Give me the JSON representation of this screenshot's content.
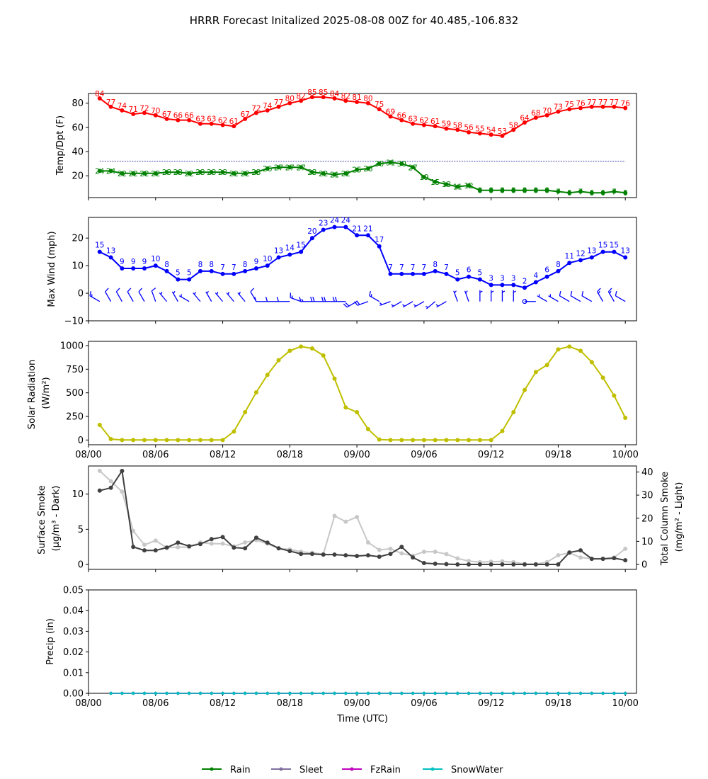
{
  "title": "HRRR Forecast Initalized 2025-08-08 00Z for 40.485,-106.832",
  "colors": {
    "temp": "#ff0000",
    "dewpoint": "#008000",
    "wind": "#0000ff",
    "solar": "#bfbf00",
    "smoke_surface": "#404040",
    "smoke_column": "#c8c8c8",
    "rain": "#008000",
    "sleet": "#8070a0",
    "fzrain": "#c000c0",
    "snowwater": "#00c0c0"
  },
  "chart_data": [
    {
      "type": "line",
      "panel": "temperature",
      "ylabel": "Temp/Dpt (F)",
      "x_hours": [
        1,
        2,
        3,
        4,
        5,
        6,
        7,
        8,
        9,
        10,
        11,
        12,
        13,
        14,
        15,
        16,
        17,
        18,
        19,
        20,
        21,
        22,
        23,
        24,
        25,
        26,
        27,
        28,
        29,
        30,
        31,
        32,
        33,
        34,
        35,
        36,
        37,
        38,
        39,
        40,
        41,
        42,
        43,
        44,
        45,
        46,
        47,
        48
      ],
      "xlim": [
        0,
        49
      ],
      "ylim": [
        2,
        88
      ],
      "yticks": [
        "20",
        "40",
        "60",
        "80"
      ],
      "ytick_values": [
        20,
        40,
        60,
        80
      ],
      "freezing_line": 32,
      "series": [
        {
          "key": "temp",
          "values": [
            84,
            77,
            74,
            71,
            72,
            70,
            67,
            66,
            66,
            63,
            63,
            62,
            61,
            67,
            72,
            74,
            77,
            80,
            82,
            85,
            85,
            84,
            82,
            81,
            80,
            75,
            69,
            66,
            63,
            62,
            61,
            59,
            58,
            56,
            55,
            54,
            53,
            58,
            64,
            68,
            70,
            73,
            75,
            76,
            77,
            77,
            77,
            76
          ]
        },
        {
          "key": "dewpoint",
          "values": [
            24,
            24,
            22,
            22,
            22,
            22,
            23,
            23,
            22,
            23,
            23,
            23,
            22,
            22,
            23,
            26,
            27,
            27,
            27,
            23,
            22,
            21,
            22,
            25,
            26,
            30,
            31,
            30,
            27,
            19,
            15,
            13,
            11,
            12,
            8,
            8,
            8,
            8,
            8,
            8,
            8,
            7,
            6,
            7,
            6,
            6,
            7,
            6
          ]
        }
      ]
    },
    {
      "type": "line",
      "panel": "wind",
      "ylabel": "Max Wind (mph)",
      "xlim": [
        0,
        49
      ],
      "ylim": [
        -10,
        27.5
      ],
      "yticks": [
        "−10",
        "0",
        "10",
        "20"
      ],
      "ytick_values": [
        -10,
        0,
        10,
        20
      ],
      "series": [
        {
          "key": "wind",
          "values": [
            15,
            13,
            9,
            9,
            9,
            10,
            8,
            5,
            5,
            8,
            8,
            7,
            7,
            8,
            9,
            10,
            13,
            14,
            15,
            20,
            23,
            24,
            24,
            21,
            21,
            17,
            7,
            7,
            7,
            7,
            8,
            7,
            5,
            6,
            5,
            3,
            3,
            3,
            2,
            4,
            6,
            8,
            11,
            12,
            13,
            15,
            15,
            13
          ]
        }
      ],
      "barb_dirs": [
        300,
        330,
        330,
        330,
        330,
        340,
        320,
        330,
        300,
        320,
        330,
        320,
        320,
        320,
        330,
        270,
        270,
        270,
        290,
        270,
        270,
        270,
        270,
        240,
        250,
        300,
        250,
        240,
        240,
        240,
        230,
        240,
        340,
        340,
        0,
        0,
        0,
        0,
        0,
        270,
        300,
        300,
        300,
        300,
        300,
        330,
        330,
        300
      ]
    },
    {
      "type": "line",
      "panel": "solar",
      "ylabel_line1": "Solar Radiation",
      "ylabel_line2": "(W/m²)",
      "xlim": [
        0,
        49
      ],
      "ylim": [
        -50,
        1045
      ],
      "yticks": [
        "0",
        "250",
        "500",
        "750",
        "1000"
      ],
      "ytick_values": [
        0,
        250,
        500,
        750,
        1000
      ],
      "series": [
        {
          "key": "solar",
          "values": [
            160,
            10,
            0,
            0,
            0,
            0,
            0,
            0,
            0,
            0,
            0,
            0,
            90,
            295,
            505,
            690,
            845,
            945,
            990,
            970,
            895,
            650,
            345,
            295,
            115,
            5,
            0,
            0,
            0,
            0,
            0,
            0,
            0,
            0,
            0,
            0,
            95,
            295,
            530,
            720,
            795,
            960,
            990,
            945,
            825,
            660,
            470,
            235
          ]
        }
      ]
    },
    {
      "type": "line",
      "panel": "smoke",
      "ylabel_line1": "Surface Smoke",
      "ylabel_line2": "(μg/m³ - Dark)",
      "y2label_line1": "Total Column Smoke",
      "y2label_line2": "(mg/m² - Light)",
      "xlim": [
        0,
        49
      ],
      "ylim": [
        -0.7,
        14
      ],
      "yticks": [
        "0",
        "5",
        "10"
      ],
      "ytick_values": [
        0,
        5,
        10
      ],
      "y2lim": [
        -2.13,
        42.6
      ],
      "y2ticks": [
        "0",
        "10",
        "20",
        "30",
        "40"
      ],
      "y2tick_values": [
        0,
        10,
        20,
        30,
        40
      ],
      "series": [
        {
          "key": "smoke_surface",
          "axis": "left",
          "values": [
            10.5,
            10.9,
            13.3,
            2.5,
            2.0,
            2.0,
            2.4,
            3.1,
            2.6,
            2.9,
            3.6,
            3.9,
            2.4,
            2.3,
            3.8,
            3.1,
            2.3,
            1.9,
            1.5,
            1.5,
            1.4,
            1.4,
            1.3,
            1.2,
            1.3,
            1.1,
            1.5,
            2.5,
            1.0,
            0.2,
            0.1,
            0.05,
            0.0,
            0.0,
            0.0,
            0.0,
            0.0,
            0.0,
            0.0,
            0.0,
            0.0,
            0.0,
            1.7,
            2.0,
            0.8,
            0.8,
            0.9,
            0.6
          ]
        },
        {
          "key": "smoke_column",
          "axis": "right",
          "values": [
            40.5,
            36,
            31.5,
            14.5,
            8.5,
            10.3,
            7.2,
            7.5,
            7.5,
            9.5,
            9.0,
            9.0,
            7.8,
            9.5,
            10.5,
            9.0,
            7.0,
            6.5,
            5.5,
            5.0,
            4.5,
            21.0,
            18.5,
            20.5,
            9.5,
            6.3,
            6.8,
            4.8,
            3.8,
            5.5,
            5.5,
            4.5,
            2.6,
            1.5,
            1.0,
            1.2,
            1.3,
            1.0,
            0.2,
            0.2,
            1.0,
            4.0,
            5.0,
            3.0,
            2.5,
            2.5,
            3.0,
            6.8
          ]
        }
      ]
    },
    {
      "type": "line",
      "panel": "precip",
      "ylabel": "Precip (in)",
      "xlabel": "Time (UTC)",
      "xlim": [
        0,
        49
      ],
      "ylim": [
        0,
        0.05
      ],
      "yticks": [
        "0.00",
        "0.01",
        "0.02",
        "0.03",
        "0.04",
        "0.05"
      ],
      "ytick_values": [
        0,
        0.01,
        0.02,
        0.03,
        0.04,
        0.05
      ],
      "xticks": [
        "08/00",
        "08/06",
        "08/12",
        "08/18",
        "09/00",
        "09/06",
        "09/12",
        "09/18",
        "10/00"
      ],
      "xtick_hours": [
        0,
        6,
        12,
        18,
        24,
        30,
        36,
        42,
        48
      ],
      "series": [
        {
          "key": "rain",
          "name": "Rain",
          "x_start": 2,
          "values_all_zero": true
        },
        {
          "key": "sleet",
          "name": "Sleet",
          "x_start": 2,
          "values_all_zero": true
        },
        {
          "key": "fzrain",
          "name": "FzRain",
          "x_start": 2,
          "values_all_zero": true
        },
        {
          "key": "snowwater",
          "name": "SnowWater",
          "x_start": 2,
          "values_all_zero": true
        }
      ]
    }
  ],
  "legend": {
    "placement": "bottom-center",
    "items": [
      {
        "key": "rain",
        "label": "Rain"
      },
      {
        "key": "sleet",
        "label": "Sleet"
      },
      {
        "key": "fzrain",
        "label": "FzRain"
      },
      {
        "key": "snowwater",
        "label": "SnowWater"
      }
    ]
  }
}
